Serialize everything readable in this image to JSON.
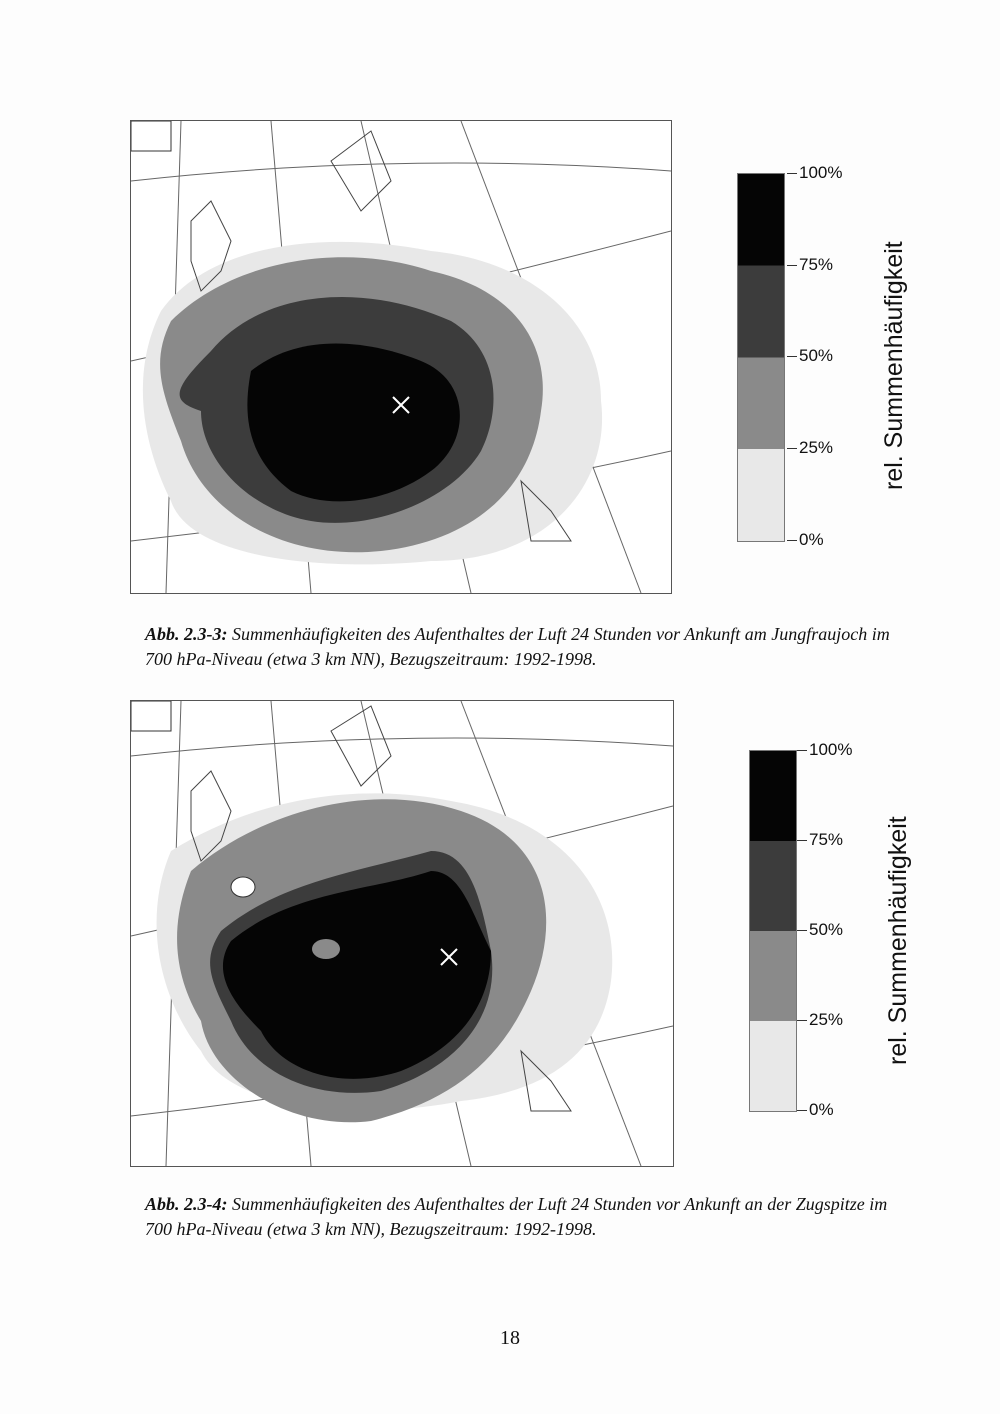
{
  "figures": [
    {
      "id": "2.3-3",
      "number": "Abb. 2.3-3:",
      "caption_line1": "Summenhäufigkeiten des Aufenthaltes der Luft 24 Stunden vor Ankunft am Jungfraujoch im",
      "caption_line2": "700 hPa-Niveau (etwa 3 km NN), Bezugszeitraum: 1992-1998.",
      "legend_ticks": [
        "100%",
        "75%",
        "50%",
        "25%",
        "0%"
      ],
      "legend_title": "rel. Summenhäufigkeit"
    },
    {
      "id": "2.3-4",
      "number": "Abb. 2.3-4:",
      "caption_line1": "Summenhäufigkeiten des Aufenthaltes der Luft 24 Stunden vor Ankunft an der Zugspitze im",
      "caption_line2": "700 hPa-Niveau (etwa 3 km NN), Bezugszeitraum: 1992-1998.",
      "legend_ticks": [
        "100%",
        "75%",
        "50%",
        "25%",
        "0%"
      ],
      "legend_title": "rel. Summenhäufigkeit"
    }
  ],
  "legend_colors": [
    "#050505",
    "#3c3c3c",
    "#8a8a8a",
    "#e8e8e8"
  ],
  "page_number": "18"
}
